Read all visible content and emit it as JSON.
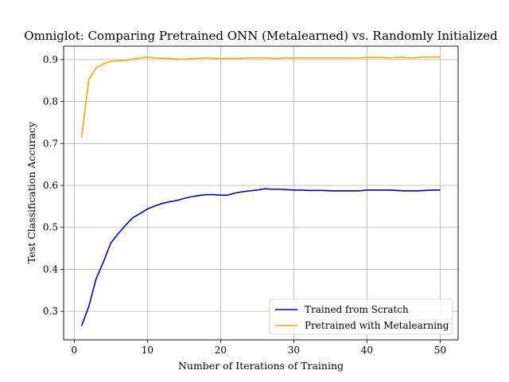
{
  "chart_data": {
    "type": "line",
    "title": "Omniglot: Comparing Pretrained ONN (Metalearned) vs. Randomly Initialized",
    "xlabel": "Number of Iterations of Training",
    "ylabel": "Test Classification Accuracy",
    "xlim": [
      -1.45,
      52.45
    ],
    "ylim": [
      0.232,
      0.932
    ],
    "xticks": [
      0,
      10,
      20,
      30,
      40,
      50
    ],
    "yticks": [
      0.3,
      0.4,
      0.5,
      0.6,
      0.7,
      0.8,
      0.9
    ],
    "xtick_labels": [
      "0",
      "10",
      "20",
      "30",
      "40",
      "50"
    ],
    "ytick_labels": [
      "0.3",
      "0.4",
      "0.5",
      "0.6",
      "0.7",
      "0.8",
      "0.9"
    ],
    "grid": true,
    "legend_position": "lower-right",
    "series": [
      {
        "name": "Trained from Scratch",
        "color": "#0000cc",
        "x": [
          1,
          2,
          3,
          4,
          5,
          6,
          7,
          8,
          9,
          10,
          11,
          12,
          13,
          14,
          15,
          16,
          17,
          18,
          19,
          20,
          21,
          22,
          23,
          24,
          25,
          26,
          27,
          28,
          29,
          30,
          31,
          32,
          33,
          34,
          35,
          36,
          37,
          38,
          39,
          40,
          41,
          42,
          43,
          44,
          45,
          46,
          47,
          48,
          49,
          50
        ],
        "values": [
          0.265,
          0.312,
          0.378,
          0.418,
          0.463,
          0.485,
          0.505,
          0.523,
          0.533,
          0.544,
          0.551,
          0.557,
          0.561,
          0.564,
          0.569,
          0.573,
          0.576,
          0.578,
          0.578,
          0.577,
          0.577,
          0.582,
          0.585,
          0.587,
          0.589,
          0.592,
          0.591,
          0.591,
          0.59,
          0.589,
          0.589,
          0.588,
          0.588,
          0.588,
          0.587,
          0.587,
          0.587,
          0.587,
          0.587,
          0.589,
          0.589,
          0.589,
          0.589,
          0.588,
          0.587,
          0.587,
          0.587,
          0.588,
          0.589,
          0.589
        ]
      },
      {
        "name": "Pretrained with Metalearning",
        "color": "#ffa500",
        "x": [
          1,
          2,
          3,
          4,
          5,
          6,
          7,
          8,
          9,
          10,
          11,
          12,
          13,
          14,
          15,
          16,
          17,
          18,
          19,
          20,
          21,
          22,
          23,
          24,
          25,
          26,
          27,
          28,
          29,
          30,
          31,
          32,
          33,
          34,
          35,
          36,
          37,
          38,
          39,
          40,
          41,
          42,
          43,
          44,
          45,
          46,
          47,
          48,
          49,
          50
        ],
        "values": [
          0.714,
          0.853,
          0.88,
          0.89,
          0.896,
          0.897,
          0.898,
          0.901,
          0.904,
          0.906,
          0.904,
          0.903,
          0.903,
          0.901,
          0.901,
          0.902,
          0.903,
          0.904,
          0.903,
          0.903,
          0.903,
          0.903,
          0.903,
          0.904,
          0.904,
          0.904,
          0.903,
          0.903,
          0.904,
          0.904,
          0.904,
          0.904,
          0.904,
          0.904,
          0.904,
          0.904,
          0.904,
          0.904,
          0.904,
          0.905,
          0.905,
          0.905,
          0.904,
          0.905,
          0.905,
          0.904,
          0.905,
          0.906,
          0.906,
          0.906
        ]
      }
    ]
  }
}
